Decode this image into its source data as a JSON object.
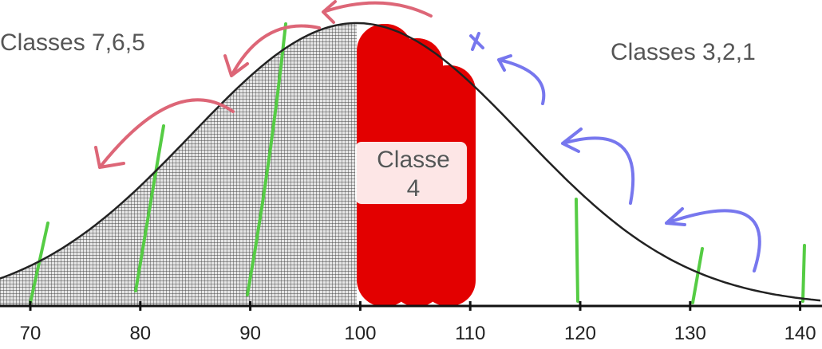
{
  "labels": {
    "left": "Classes 7,6,5",
    "right": "Classes 3,2,1",
    "center": [
      "Classe",
      "4"
    ]
  },
  "axis": {
    "ticks": [
      "70",
      "80",
      "90",
      "100",
      "110",
      "120",
      "130",
      "140"
    ]
  }
}
